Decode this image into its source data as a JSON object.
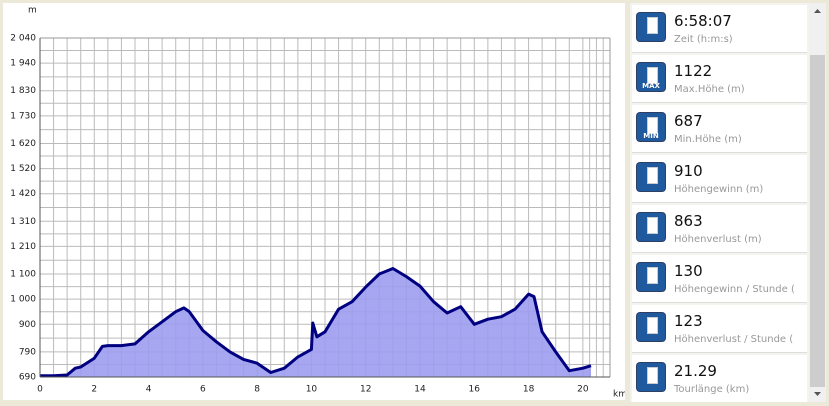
{
  "chart_data": {
    "type": "area",
    "y_label": "m",
    "x_label": "km",
    "x": [
      0,
      0.5,
      1,
      1.3,
      1.5,
      2,
      2.3,
      2.5,
      3,
      3.5,
      4,
      4.5,
      5,
      5.3,
      5.5,
      6,
      6.5,
      7,
      7.5,
      8,
      8.5,
      9,
      9.5,
      10,
      10.05,
      10.2,
      10.5,
      11,
      11.5,
      12,
      12.5,
      13,
      13.5,
      14,
      14.5,
      15,
      15.5,
      16,
      16.5,
      17,
      17.5,
      18,
      18.2,
      18.5,
      19,
      19.5,
      20,
      20.3
    ],
    "values": [
      695,
      695,
      698,
      725,
      730,
      765,
      812,
      815,
      815,
      822,
      870,
      910,
      950,
      965,
      950,
      875,
      830,
      790,
      760,
      745,
      708,
      725,
      770,
      800,
      905,
      850,
      870,
      960,
      990,
      1048,
      1100,
      1122,
      1090,
      1052,
      990,
      945,
      970,
      900,
      920,
      930,
      960,
      1020,
      1010,
      870,
      790,
      715,
      725,
      735
    ],
    "fill": "#9c9cf0",
    "color": "#000080",
    "xlim": [
      0,
      21
    ],
    "xticks": [
      0,
      2,
      4,
      6,
      8,
      10,
      12,
      14,
      16,
      18,
      20
    ],
    "ylim": [
      690,
      2040
    ],
    "yticks": [
      690,
      790,
      900,
      {
        "value": 1000,
        "label": "1 000"
      },
      {
        "value": 1100,
        "label": "1 100"
      },
      {
        "value": 1210,
        "label": "1 210"
      },
      {
        "value": 1310,
        "label": "1 310"
      },
      {
        "value": 1420,
        "label": "1 420"
      },
      {
        "value": 1520,
        "label": "1 520"
      },
      {
        "value": 1620,
        "label": "1 620"
      },
      {
        "value": 1730,
        "label": "1 730"
      },
      {
        "value": 1830,
        "label": "1 830"
      },
      {
        "value": 1940,
        "label": "1 940"
      },
      {
        "value": 2040,
        "label": "2 040"
      }
    ],
    "grid": true,
    "minor_grid": true
  },
  "stats": [
    {
      "value": "6:58:07",
      "label": "Zeit (h:m:s)"
    },
    {
      "value": "1122",
      "label": "Max.Höhe (m)",
      "icon_text": "MAX"
    },
    {
      "value": "687",
      "label": "Min.Höhe (m)",
      "icon_text": "MIN"
    },
    {
      "value": "910",
      "label": "Höhengewinn (m)"
    },
    {
      "value": "863",
      "label": "Höhenverlust (m)"
    },
    {
      "value": "130",
      "label": "Höhengewinn / Stunde ("
    },
    {
      "value": "123",
      "label": "Höhenverlust / Stunde ("
    },
    {
      "value": "21.29",
      "label": "Tourlänge (km)"
    }
  ]
}
